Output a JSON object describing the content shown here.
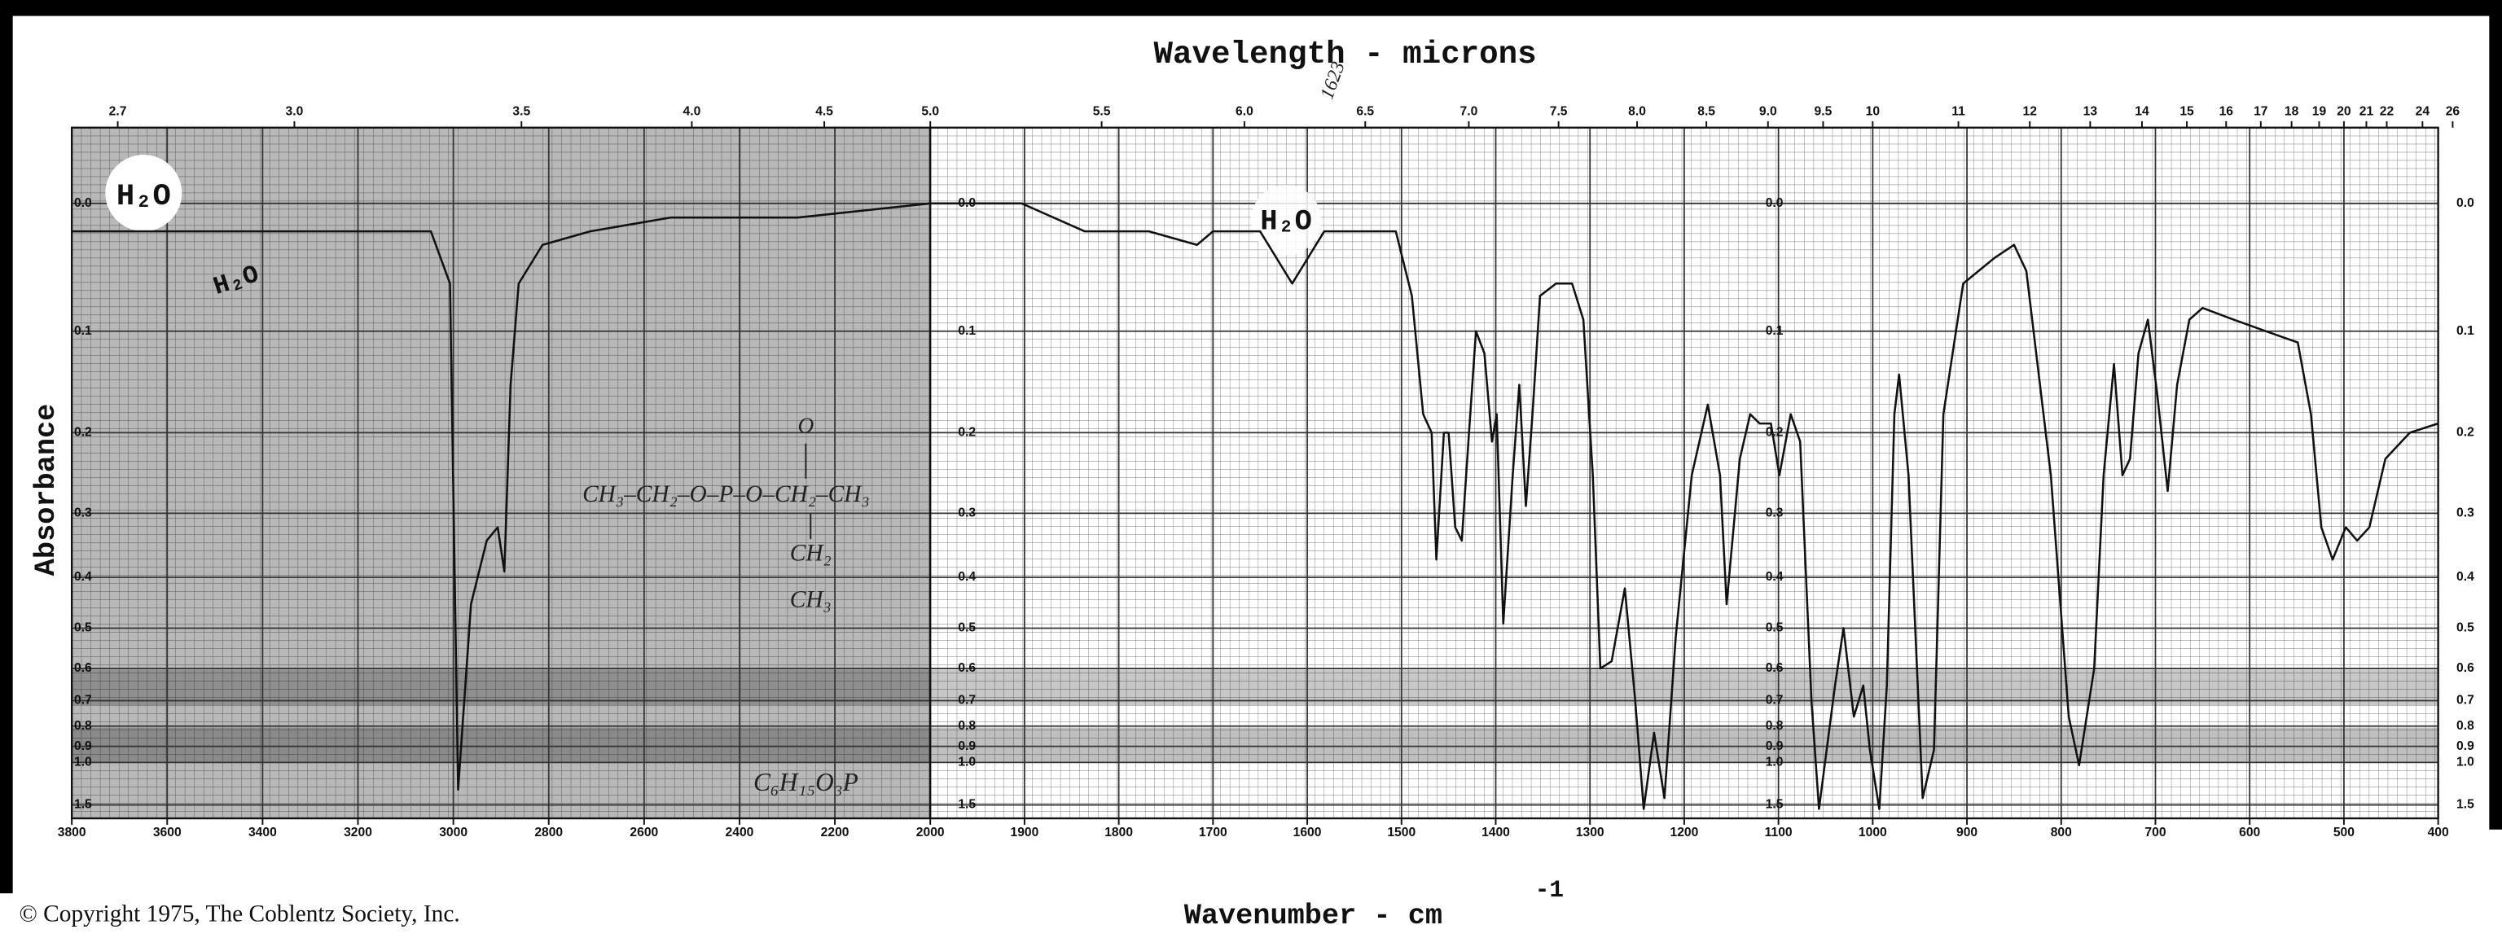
{
  "copyright": "© Copyright 1975, The Coblentz Society, Inc.",
  "chart_data": [
    {
      "type": "line",
      "title": "Wavelength - microns",
      "x_label": "Wavenumber - cm",
      "x_label_superscript": "-1",
      "y_label": "Absorbance",
      "annotations": [
        "H₂O",
        "H₂O",
        "H₂O",
        "CH₃–CH₂–O–P–O–CH₂–CH₃",
        "O",
        "CH₂",
        "CH₃",
        "C₆H₁₅O₃P",
        "1623"
      ],
      "color": "#111111",
      "grid": true,
      "yscale": "absorbance",
      "xlim": [
        3800,
        2000
      ],
      "xticks": [
        3800,
        3600,
        3400,
        3200,
        3000,
        2800,
        2600,
        2400,
        2200,
        2000
      ],
      "x2ticks": [
        2.7,
        {
          "value": 3,
          "label": "3.0"
        },
        3.5,
        {
          "value": 4,
          "label": "4.0"
        },
        4.5,
        {
          "value": 5,
          "label": "5.0"
        }
      ],
      "ylim": [
        -0.05,
        2
      ],
      "yticks": [
        {
          "value": 0,
          "label": "0.0"
        },
        0.1,
        0.2,
        0.3,
        0.4,
        0.5,
        0.6,
        0.7,
        0.8,
        0.9,
        {
          "value": 1,
          "label": "1.0"
        },
        1.5
      ],
      "x": [
        3800,
        3616,
        3181,
        3081,
        3047,
        3007,
        2990,
        2963,
        2930,
        2907,
        2893,
        2880,
        2863,
        2813,
        2713,
        2545,
        2278,
        2000
      ],
      "values": [
        0.02,
        0.02,
        0.02,
        0.02,
        0.02,
        0.06,
        1.25,
        0.45,
        0.34,
        0.32,
        0.39,
        0.15,
        0.06,
        0.03,
        0.02,
        0.01,
        0.01,
        0.0
      ]
    },
    {
      "type": "line",
      "color": "#111111",
      "grid": true,
      "yscale": "absorbance",
      "xlim": [
        2000,
        400
      ],
      "xticks": [
        1900,
        1800,
        1700,
        1600,
        1500,
        1400,
        1300,
        1200,
        1100,
        1000,
        900,
        800,
        700,
        600,
        500,
        400
      ],
      "x2ticks": [
        5.5,
        {
          "value": 6,
          "label": "6.0"
        },
        6.5,
        {
          "value": 7,
          "label": "7.0"
        },
        7.5,
        {
          "value": 8,
          "label": "8.0"
        },
        8.5,
        {
          "value": 9,
          "label": "9.0"
        },
        9.5,
        10,
        11,
        12,
        13,
        14,
        15,
        16,
        17,
        18,
        19,
        20,
        21,
        22,
        24,
        26
      ],
      "ylim": [
        -0.05,
        2
      ],
      "yticks": [
        {
          "value": 0,
          "label": "0.0"
        },
        0.1,
        0.2,
        0.3,
        0.4,
        0.5,
        0.6,
        0.7,
        0.8,
        0.9,
        {
          "value": 1,
          "label": "1.0"
        },
        1.5
      ],
      "x": [
        2000,
        1971,
        1903,
        1836,
        1768,
        1717,
        1700,
        1650,
        1616,
        1582,
        1531,
        1506,
        1489,
        1477,
        1468,
        1463,
        1455,
        1450,
        1443,
        1436,
        1429,
        1421,
        1412,
        1404,
        1399,
        1392,
        1382,
        1375,
        1368,
        1361,
        1353,
        1336,
        1319,
        1307,
        1297,
        1289,
        1277,
        1263,
        1252,
        1243,
        1232,
        1221,
        1209,
        1192,
        1175,
        1162,
        1155,
        1141,
        1130,
        1120,
        1108,
        1099,
        1087,
        1077,
        1065,
        1057,
        1040,
        1031,
        1020,
        1010,
        1003,
        993,
        985,
        977,
        972,
        962,
        947,
        935,
        925,
        904,
        871,
        850,
        837,
        811,
        792,
        781,
        765,
        755,
        744,
        735,
        727,
        718,
        708,
        698,
        687,
        677,
        664,
        650,
        617,
        583,
        549,
        535,
        524,
        512,
        498,
        486,
        473,
        456,
        430,
        400
      ],
      "values": [
        0.0,
        0.0,
        0.0,
        0.02,
        0.02,
        0.03,
        0.02,
        0.02,
        0.06,
        0.02,
        0.02,
        0.02,
        0.07,
        0.18,
        0.2,
        0.37,
        0.2,
        0.2,
        0.32,
        0.34,
        0.21,
        0.1,
        0.12,
        0.21,
        0.18,
        0.49,
        0.25,
        0.15,
        0.29,
        0.18,
        0.07,
        0.06,
        0.06,
        0.09,
        0.25,
        0.6,
        0.58,
        0.42,
        0.7,
        1.6,
        0.83,
        1.37,
        0.52,
        0.25,
        0.17,
        0.25,
        0.45,
        0.23,
        0.18,
        0.19,
        0.19,
        0.25,
        0.18,
        0.21,
        0.7,
        1.6,
        0.65,
        0.5,
        0.76,
        0.65,
        0.92,
        1.6,
        0.65,
        0.18,
        0.14,
        0.25,
        1.37,
        0.92,
        0.18,
        0.06,
        0.04,
        0.03,
        0.05,
        0.25,
        0.76,
        1.02,
        0.6,
        0.25,
        0.13,
        0.25,
        0.23,
        0.12,
        0.09,
        0.16,
        0.27,
        0.15,
        0.09,
        0.08,
        0.09,
        0.1,
        0.11,
        0.18,
        0.32,
        0.37,
        0.32,
        0.34,
        0.32,
        0.23,
        0.2,
        0.19
      ]
    }
  ]
}
